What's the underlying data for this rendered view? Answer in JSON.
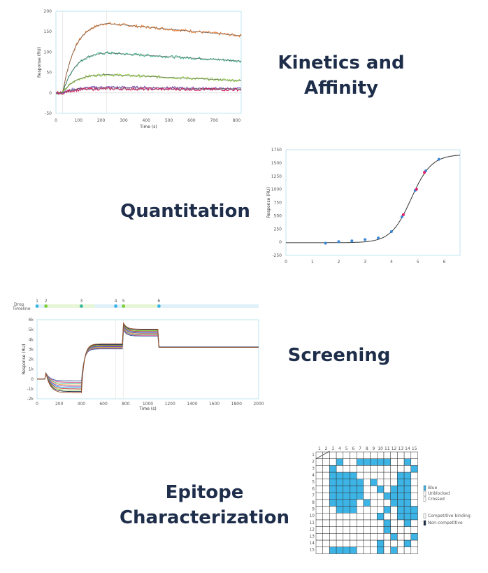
{
  "labels": {
    "kinetics": "Kinetics and",
    "affinity": "Affinity",
    "quantitation": "Quantitation",
    "screening": "Screening",
    "epitope": "Epitope",
    "characterization": "Characterization"
  },
  "colors": {
    "heading": "#1e2e4a",
    "frame": "#bfe6f2",
    "accent": "#3cb4e6"
  },
  "chart_data": [
    {
      "type": "line",
      "xlabel": "Time (s)",
      "ylabel": "Response (RU)",
      "xlim": [
        0,
        820
      ],
      "ylim": [
        -50,
        200
      ],
      "xticks": [
        "0",
        "100",
        "200",
        "300",
        "400",
        "500",
        "600",
        "700",
        "800"
      ],
      "yticks": [
        "200",
        "150",
        "100",
        "50",
        "0",
        "-50"
      ],
      "series": [
        {
          "color": "#e8792e",
          "plateau": 170,
          "end": 140
        },
        {
          "color": "#3fb98a",
          "plateau": 98,
          "end": 78
        },
        {
          "color": "#8ccf3a",
          "plateau": 45,
          "end": 30
        },
        {
          "color": "#8a5fc7",
          "plateau": 14,
          "end": 10
        },
        {
          "color": "#d81b60",
          "plateau": 10,
          "end": 8
        }
      ]
    },
    {
      "type": "scatter",
      "xlabel": "",
      "ylabel": "Response (RU)",
      "xlim": [
        0,
        6.6
      ],
      "ylim": [
        -250,
        1750
      ],
      "xticks": [
        "0",
        "1",
        "2",
        "3",
        "4",
        "5",
        "6"
      ],
      "yticks": [
        "1750",
        "1500",
        "1250",
        "1000",
        "750",
        "500",
        "250",
        "0",
        "-250"
      ],
      "points_blue": [
        [
          1.5,
          -20
        ],
        [
          2.0,
          10
        ],
        [
          2.5,
          25
        ],
        [
          3.0,
          50
        ],
        [
          3.5,
          80
        ],
        [
          4.0,
          200
        ],
        [
          4.4,
          480
        ],
        [
          4.9,
          980
        ],
        [
          5.3,
          1350
        ],
        [
          5.8,
          1570
        ]
      ],
      "points_red": [
        [
          4.45,
          520
        ],
        [
          4.95,
          1000
        ],
        [
          5.25,
          1320
        ]
      ]
    },
    {
      "type": "line",
      "xlabel": "Time (s)",
      "ylabel": "Response (RU)",
      "xlim": [
        0,
        2000
      ],
      "ylim": [
        -2000,
        6000
      ],
      "xticks": [
        "0",
        "200",
        "400",
        "600",
        "800",
        "1000",
        "1200",
        "1400",
        "1600",
        "1800",
        "2000"
      ],
      "yticks": [
        "6k",
        "5k",
        "4k",
        "3k",
        "2k",
        "1k",
        "0",
        "-1k",
        "-2k"
      ],
      "timeline_label": "Drop Timeline",
      "timeline_points": [
        "1",
        "2",
        "3",
        "4",
        "5",
        "6"
      ]
    },
    {
      "type": "heatmap",
      "rows": 15,
      "cols": 15,
      "legend": [
        "Blue",
        "Unblocked",
        "Crossed",
        "Competitive binding",
        "Non-competitive"
      ]
    }
  ]
}
